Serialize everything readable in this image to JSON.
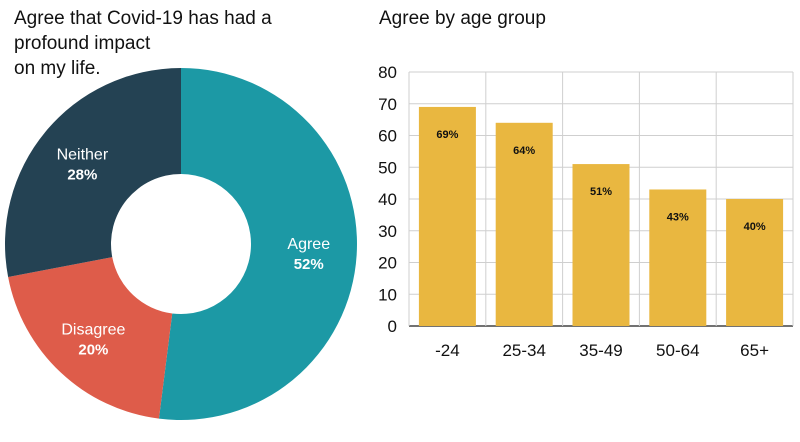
{
  "chart_data": [
    {
      "type": "pie",
      "title": "Agree that Covid-19 has had a profound impact\non my life.",
      "slices": [
        {
          "label": "Agree",
          "value_label": "52%",
          "value": 52,
          "color": "#1c99a5"
        },
        {
          "label": "Disagree",
          "value_label": "20%",
          "value": 20,
          "color": "#de5c4a"
        },
        {
          "label": "Neither",
          "value_label": "28%",
          "value": 28,
          "color": "#244253"
        }
      ]
    },
    {
      "type": "bar",
      "title": "Agree by age group",
      "categories": [
        "-24",
        "25-34",
        "35-49",
        "50-64",
        "65+"
      ],
      "values": [
        69,
        64,
        51,
        43,
        40
      ],
      "data_labels": [
        "69%",
        "64%",
        "51%",
        "43%",
        "40%"
      ],
      "ylim": [
        0,
        80
      ],
      "yticks": [
        "0",
        "10",
        "20",
        "30",
        "40",
        "50",
        "60",
        "70",
        "80"
      ],
      "grid": true,
      "bar_color": "#e9b740"
    }
  ]
}
